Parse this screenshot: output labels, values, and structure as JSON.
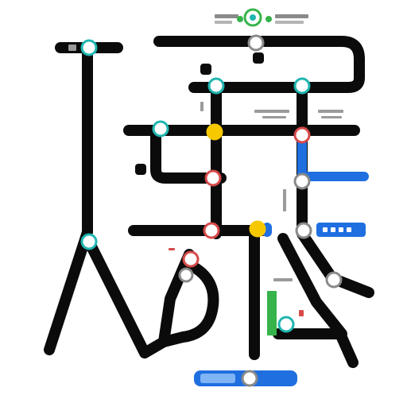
{
  "colors": {
    "track": "#0b0b0b",
    "blue_line": "#1f6fe0",
    "station_fill": "#ffffff",
    "teal_ring": "#20b6b0",
    "red_ring": "#d64a4a",
    "yellow_fill": "#f5c800",
    "gray_ring": "#8a8a8a",
    "green": "#36b34a",
    "label_blue_bg": "#1f6fe0",
    "label_text": "#4b4b4b"
  },
  "legend": {
    "icon": "map-icon"
  },
  "stations": [
    {
      "name": "station-top-left",
      "ring": "teal_ring"
    },
    {
      "name": "station-top-center",
      "ring": "gray_ring"
    },
    {
      "name": "station-upper-teal",
      "ring": "teal_ring"
    },
    {
      "name": "station-upper-right-teal",
      "ring": "teal_ring"
    },
    {
      "name": "station-mid-left-teal",
      "ring": "teal_ring"
    },
    {
      "name": "station-mid-yellow",
      "ring": "yellow_fill"
    },
    {
      "name": "station-mid-right-red",
      "ring": "red_ring"
    },
    {
      "name": "station-center-red",
      "ring": "red_ring"
    },
    {
      "name": "station-blue-junction",
      "ring": "gray_ring"
    },
    {
      "name": "station-lower-red",
      "ring": "red_ring"
    },
    {
      "name": "station-lower-yellow",
      "ring": "yellow_fill"
    },
    {
      "name": "station-lower-right",
      "ring": "gray_ring"
    },
    {
      "name": "station-left-teal",
      "ring": "teal_ring"
    },
    {
      "name": "station-left-red",
      "ring": "red_ring"
    },
    {
      "name": "station-left-gray",
      "ring": "gray_ring"
    },
    {
      "name": "station-right-gray",
      "ring": "gray_ring"
    },
    {
      "name": "station-bottom-green",
      "ring": "teal_ring"
    },
    {
      "name": "station-bottom-blue",
      "ring": "gray_ring"
    }
  ]
}
